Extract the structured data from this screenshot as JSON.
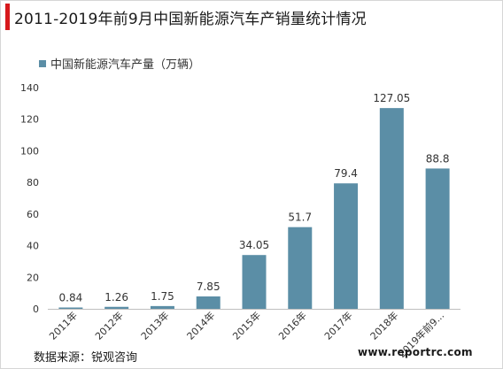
{
  "title": "2011-2019年前9月中国新能源汽车产销量统计情况",
  "source": "数据来源：锐观咨询",
  "watermark": "www.reportrc.com",
  "colors": {
    "accent": "#d7191c",
    "bar": "#5b8ea6"
  },
  "chart_data": {
    "type": "bar",
    "categories": [
      "2011年",
      "2012年",
      "2013年",
      "2014年",
      "2015年",
      "2016年",
      "2017年",
      "2018年",
      "2019年前9..."
    ],
    "series": [
      {
        "name": "中国新能源汽车产量（万辆）",
        "values": [
          0.84,
          1.26,
          1.75,
          7.85,
          34.05,
          51.7,
          79.4,
          127.05,
          88.8
        ]
      }
    ],
    "data_labels": [
      "0.84",
      "1.26",
      "1.75",
      "7.85",
      "34.05",
      "51.7",
      "79.4",
      "127.05",
      "88.8"
    ],
    "y_ticks": [
      "0",
      "20",
      "40",
      "60",
      "80",
      "100",
      "120",
      "140"
    ],
    "ylim": [
      0,
      140
    ],
    "legend_position": "top-left",
    "grid": false
  }
}
